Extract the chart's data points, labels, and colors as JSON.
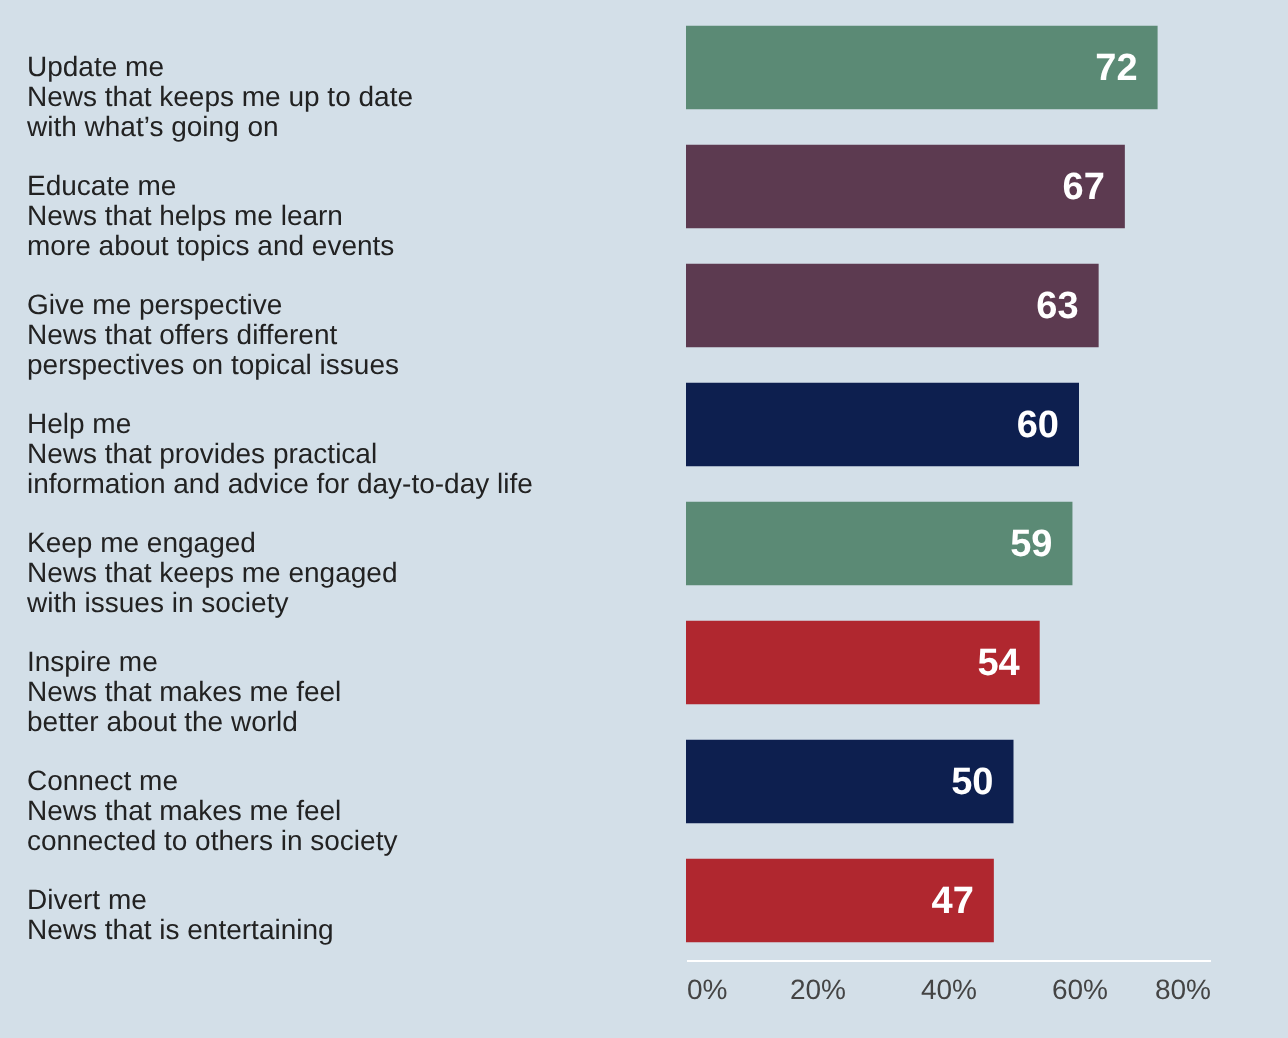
{
  "chart_data": {
    "type": "bar",
    "orientation": "horizontal",
    "categories": [
      "Update me\nNews that keeps me up to date\nwith what’s going on",
      "Educate me\nNews that helps me learn\nmore about topics and events",
      "Give me perspective\nNews that offers different\nperspectives on topical issues",
      "Help me\nNews that provides practical\ninformation and advice for day-to-day life",
      "Keep me engaged\nNews that keeps me engaged\nwith issues in society",
      "Inspire me\nNews that makes me feel\nbetter about the world",
      "Connect me\nNews that makes me feel\nconnected to others in society",
      "Divert me\nNews that is entertaining"
    ],
    "values": [
      72,
      67,
      63,
      60,
      59,
      54,
      50,
      47
    ],
    "colors": [
      "#5b8a75",
      "#5c3a50",
      "#5c3a50",
      "#0d1f4f",
      "#5b8a75",
      "#b0272f",
      "#0d1f4f",
      "#b0272f"
    ],
    "xlim": [
      0,
      80
    ],
    "xticks": [
      {
        "value": 0,
        "label": "0%"
      },
      {
        "value": 20,
        "label": "20%"
      },
      {
        "value": 40,
        "label": "40%"
      },
      {
        "value": 60,
        "label": "60%"
      },
      {
        "value": 80,
        "label": "80%"
      }
    ],
    "data_labels": true
  }
}
